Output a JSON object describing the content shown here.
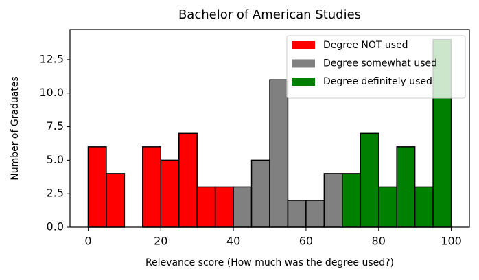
{
  "chart_data": {
    "type": "histogram",
    "title": "Bachelor of American Studies",
    "xlabel": "Relevance score (How much was the degree used?)",
    "ylabel": "Number of Graduates",
    "series": [
      {
        "name": "Degree NOT used",
        "color": "#ff0000",
        "bins": [
          0,
          5,
          10,
          15,
          20,
          25,
          30,
          35,
          40
        ],
        "values": [
          6,
          4,
          0,
          6,
          5,
          7,
          3,
          3
        ]
      },
      {
        "name": "Degree somewhat used",
        "color": "#808080",
        "bins": [
          40,
          45,
          50,
          55,
          60,
          65,
          70
        ],
        "values": [
          3,
          5,
          11,
          2,
          2,
          4
        ]
      },
      {
        "name": "Degree definitely used",
        "color": "#008000",
        "bins": [
          70,
          75,
          80,
          85,
          90,
          95,
          100
        ],
        "values": [
          4,
          7,
          3,
          6,
          3,
          14
        ]
      }
    ],
    "xlim": [
      -5,
      105
    ],
    "xticks": [
      0,
      20,
      40,
      60,
      80,
      100
    ],
    "ylim": [
      0,
      14.75
    ],
    "yticks": [
      {
        "value": 0,
        "label": "0.0"
      },
      2.5,
      {
        "value": 5,
        "label": "5.0"
      },
      7.5,
      {
        "value": 10,
        "label": "10.0"
      },
      12.5
    ],
    "legend": "upper right"
  }
}
